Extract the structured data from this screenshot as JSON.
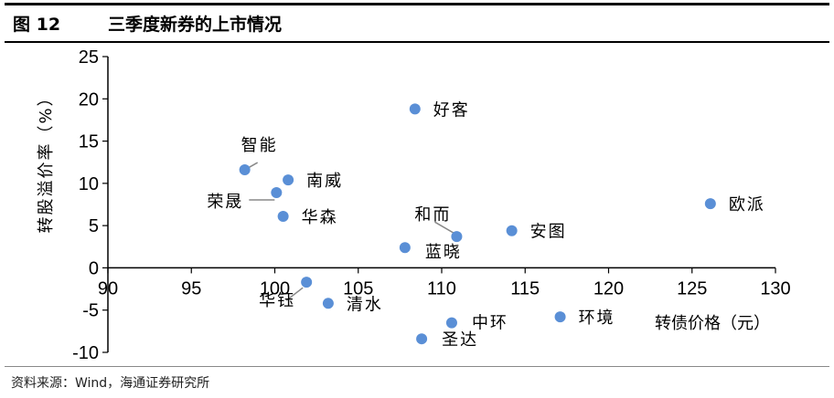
{
  "header": {
    "figure_number": "图 12",
    "title": "三季度新券的上市情况"
  },
  "source": "资料来源：Wind，海通证券研究所",
  "chart_data": {
    "type": "scatter",
    "title": "三季度新券的上市情况",
    "xlabel": "转债价格（元）",
    "ylabel": "转股溢价率（%）",
    "xlim": [
      90,
      130
    ],
    "ylim": [
      -10,
      25
    ],
    "xticks": [
      90,
      95,
      100,
      105,
      110,
      115,
      120,
      125,
      130
    ],
    "yticks": [
      -10,
      -5,
      0,
      5,
      10,
      15,
      20,
      25
    ],
    "grid": false,
    "marker_color": "#5a8fd6",
    "points": [
      {
        "name": "好客",
        "x": 108.4,
        "y": 18.8
      },
      {
        "name": "智能",
        "x": 98.2,
        "y": 11.6
      },
      {
        "name": "南威",
        "x": 100.8,
        "y": 10.4
      },
      {
        "name": "荣晟",
        "x": 100.1,
        "y": 8.9
      },
      {
        "name": "华森",
        "x": 100.5,
        "y": 6.1
      },
      {
        "name": "欧派",
        "x": 126.1,
        "y": 7.6
      },
      {
        "name": "安图",
        "x": 114.2,
        "y": 4.4
      },
      {
        "name": "和而",
        "x": 110.9,
        "y": 3.7
      },
      {
        "name": "蓝晓",
        "x": 107.8,
        "y": 2.4
      },
      {
        "name": "华钰",
        "x": 101.9,
        "y": -1.7
      },
      {
        "name": "清水",
        "x": 103.2,
        "y": -4.2
      },
      {
        "name": "中环",
        "x": 110.6,
        "y": -6.5
      },
      {
        "name": "环境",
        "x": 117.1,
        "y": -5.8
      },
      {
        "name": "圣达",
        "x": 108.8,
        "y": -8.4
      }
    ]
  }
}
